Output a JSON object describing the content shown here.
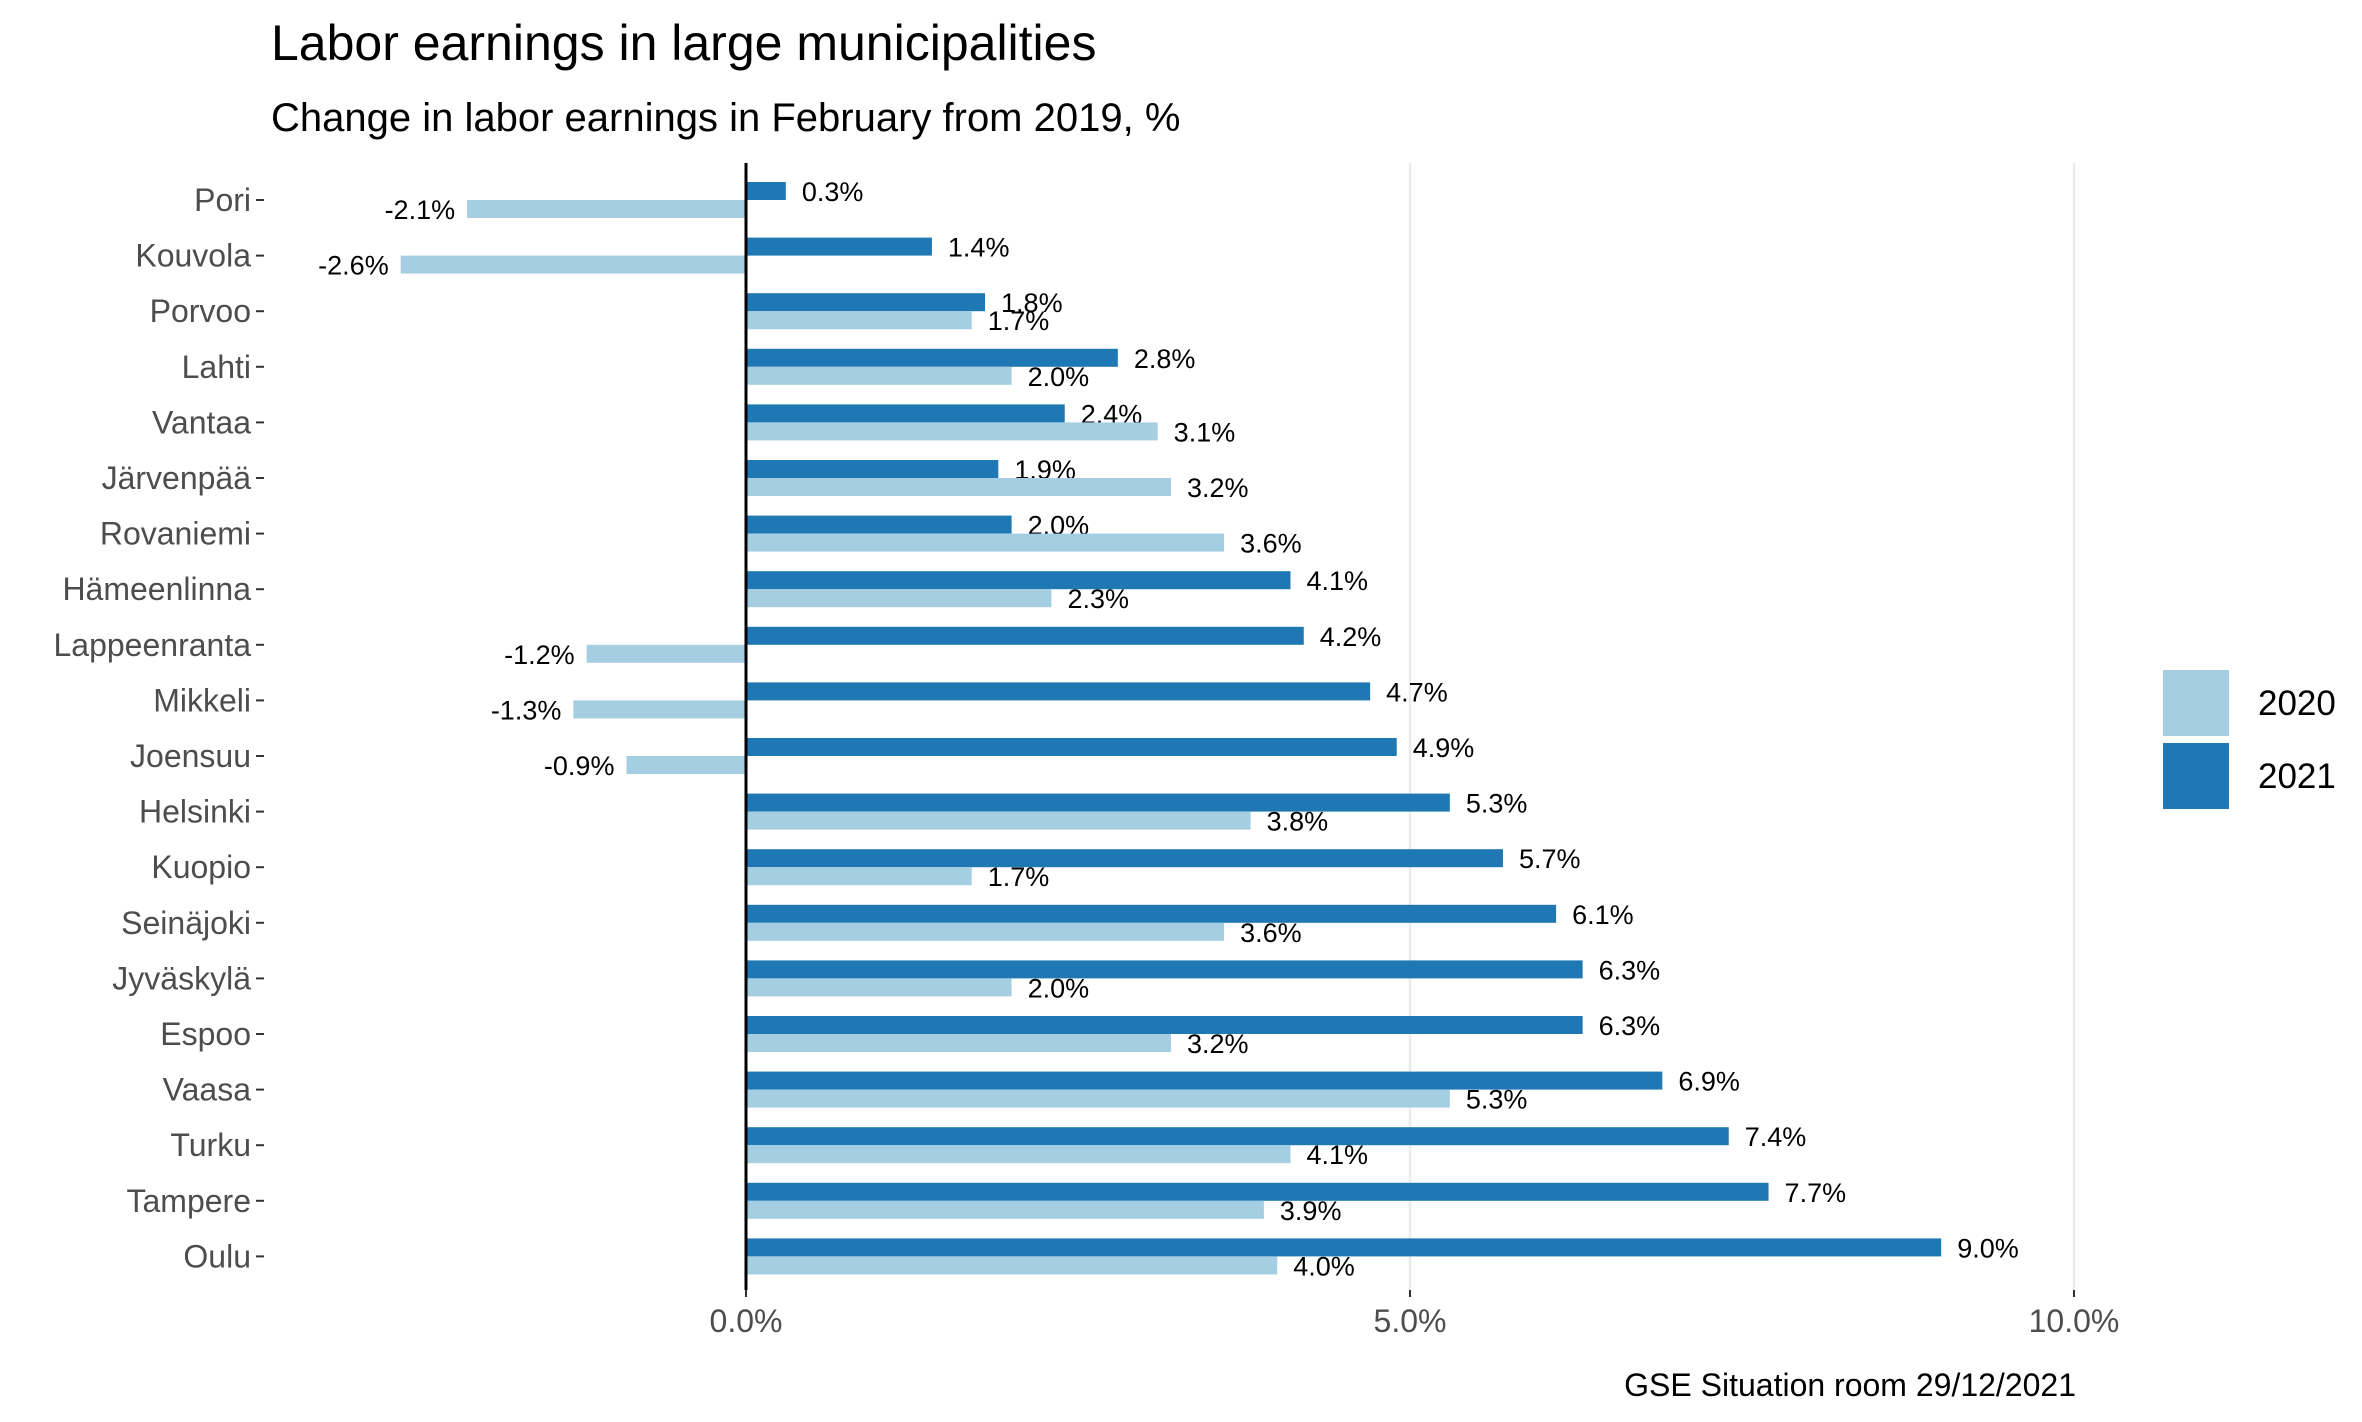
{
  "chart_data": {
    "type": "bar",
    "orientation": "horizontal",
    "title": "Labor earnings in large municipalities",
    "subtitle": "Change in labor earnings in February from 2019, %",
    "caption": "GSE Situation room 29/12/2021",
    "categories": [
      "Pori",
      "Kouvola",
      "Porvoo",
      "Lahti",
      "Vantaa",
      "Järvenpää",
      "Rovaniemi",
      "Hämeenlinna",
      "Lappeenranta",
      "Mikkeli",
      "Joensuu",
      "Helsinki",
      "Kuopio",
      "Seinäjoki",
      "Jyväskylä",
      "Espoo",
      "Vaasa",
      "Turku",
      "Tampere",
      "Oulu"
    ],
    "series": [
      {
        "name": "2020",
        "color": "#a6cee3",
        "values": [
          -2.1,
          -2.6,
          1.7,
          2.0,
          3.1,
          3.2,
          3.6,
          2.3,
          -1.2,
          -1.3,
          -0.9,
          3.8,
          1.7,
          3.6,
          2.0,
          3.2,
          5.3,
          4.1,
          3.9,
          4.0
        ],
        "labels": [
          "-2.1%",
          "-2.6%",
          "1.7%",
          "2.0%",
          "3.1%",
          "3.2%",
          "3.6%",
          "2.3%",
          "-1.2%",
          "-1.3%",
          "-0.9%",
          "3.8%",
          "1.7%",
          "3.6%",
          "2.0%",
          "3.2%",
          "5.3%",
          "4.1%",
          "3.9%",
          "4.0%"
        ]
      },
      {
        "name": "2021",
        "color": "#1f78b4",
        "values": [
          0.3,
          1.4,
          1.8,
          2.8,
          2.4,
          1.9,
          2.0,
          4.1,
          4.2,
          4.7,
          4.9,
          5.3,
          5.7,
          6.1,
          6.3,
          6.3,
          6.9,
          7.4,
          7.7,
          9.0
        ],
        "labels": [
          "0.3%",
          "1.4%",
          "1.8%",
          "2.8%",
          "2.4%",
          "1.9%",
          "2.0%",
          "4.1%",
          "4.2%",
          "4.7%",
          "4.9%",
          "5.3%",
          "5.7%",
          "6.1%",
          "6.3%",
          "6.3%",
          "6.9%",
          "7.4%",
          "7.7%",
          "9.0%"
        ]
      }
    ],
    "xlim": [
      -3.6,
      11.2
    ],
    "xticks": [
      0,
      5,
      10
    ],
    "xtick_labels": [
      "0.0%",
      "5.0%",
      "10.0%"
    ],
    "grid": "vertical major",
    "legend_position": "right"
  }
}
